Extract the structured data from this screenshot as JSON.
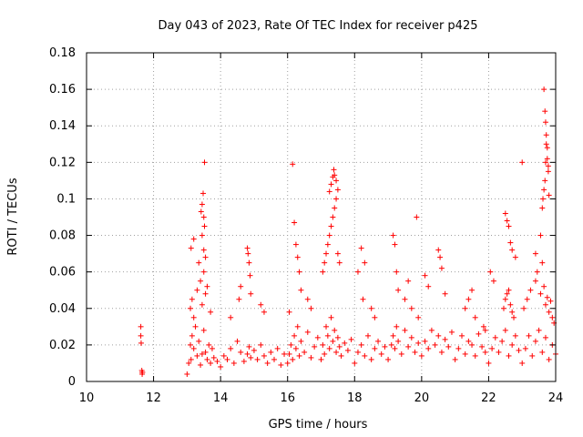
{
  "chart_data": {
    "type": "scatter",
    "title": "Day 043 of 2023, Rate Of TEC Index for receiver p425",
    "xlabel": "GPS time / hours",
    "ylabel": "ROTI / TECUs",
    "xlim": [
      10,
      24
    ],
    "ylim": [
      0,
      0.18
    ],
    "x_ticks": [
      "10",
      "12",
      "14",
      "16",
      "18",
      "20",
      "22",
      "24"
    ],
    "y_ticks": [
      "0",
      "0.02",
      "0.04",
      "0.06",
      "0.08",
      "0.1",
      "0.12",
      "0.14",
      "0.16",
      "0.18"
    ],
    "grid": true,
    "marker": "+",
    "color": "#ff0000",
    "series": [
      {
        "x": [
          11.62,
          11.62,
          11.63,
          11.65,
          11.66,
          11.66,
          11.67,
          13.0,
          13.05,
          13.1,
          13.12,
          13.15,
          13.2,
          13.25,
          13.3,
          13.35,
          13.4,
          13.45,
          13.5,
          13.55,
          13.6,
          13.65,
          13.7,
          13.75,
          13.8,
          13.9,
          13.1,
          13.15,
          13.2,
          13.3,
          13.4,
          13.45,
          13.5,
          13.55,
          13.6,
          13.7,
          13.12,
          13.2,
          13.35,
          13.45,
          13.5,
          13.52,
          13.55,
          13.42,
          13.45,
          13.48,
          13.5,
          13.52,
          14.0,
          14.1,
          14.2,
          14.3,
          14.4,
          14.5,
          14.6,
          14.7,
          14.8,
          14.85,
          14.9,
          15.0,
          15.1,
          15.2,
          15.3,
          15.4,
          15.5,
          15.6,
          15.7,
          15.8,
          15.9,
          14.8,
          14.82,
          14.85,
          14.88,
          14.9,
          14.55,
          14.6,
          15.2,
          15.3,
          14.3,
          16.0,
          16.05,
          16.1,
          16.15,
          16.2,
          16.25,
          16.3,
          16.35,
          16.4,
          16.5,
          16.6,
          16.7,
          16.8,
          16.9,
          16.15,
          16.2,
          16.25,
          16.3,
          16.35,
          16.4,
          16.6,
          16.7,
          16.05,
          17.0,
          17.05,
          17.1,
          17.15,
          17.2,
          17.25,
          17.3,
          17.35,
          17.4,
          17.45,
          17.5,
          17.55,
          17.6,
          17.7,
          17.8,
          17.9,
          17.05,
          17.1,
          17.15,
          17.2,
          17.25,
          17.3,
          17.35,
          17.4,
          17.45,
          17.5,
          17.55,
          17.25,
          17.3,
          17.35,
          17.38,
          17.4,
          17.45,
          17.5,
          18.0,
          18.1,
          18.2,
          18.3,
          18.4,
          18.5,
          18.6,
          18.7,
          18.8,
          18.9,
          18.1,
          18.2,
          18.3,
          18.25,
          18.5,
          18.6,
          19.0,
          19.1,
          19.15,
          19.2,
          19.25,
          19.3,
          19.4,
          19.5,
          19.6,
          19.7,
          19.8,
          19.9,
          19.15,
          19.2,
          19.25,
          19.3,
          19.5,
          19.6,
          19.7,
          19.85,
          19.9,
          20.0,
          20.1,
          20.2,
          20.3,
          20.4,
          20.5,
          20.6,
          20.7,
          20.8,
          20.9,
          20.1,
          20.2,
          20.5,
          20.55,
          20.6,
          20.7,
          21.0,
          21.1,
          21.2,
          21.3,
          21.4,
          21.5,
          21.6,
          21.7,
          21.8,
          21.9,
          21.3,
          21.4,
          21.5,
          21.6,
          21.85,
          21.9,
          22.0,
          22.1,
          22.2,
          22.3,
          22.4,
          22.5,
          22.6,
          22.7,
          22.8,
          22.9,
          22.05,
          22.15,
          22.45,
          22.5,
          22.55,
          22.6,
          22.65,
          22.7,
          22.75,
          22.5,
          22.55,
          22.6,
          22.65,
          22.7,
          22.8,
          23.0,
          23.1,
          23.2,
          23.3,
          23.4,
          23.5,
          23.6,
          23.7,
          23.8,
          23.9,
          24.0,
          23.05,
          23.15,
          23.25,
          23.4,
          23.45,
          23.55,
          23.6,
          23.65,
          23.7,
          23.75,
          23.8,
          23.85,
          23.9,
          23.95,
          23.0,
          23.4,
          23.55,
          23.6,
          23.62,
          23.65,
          23.68,
          23.7,
          23.72,
          23.75,
          23.78,
          23.8,
          23.65,
          23.68,
          23.7,
          23.72,
          23.75,
          23.78
        ],
        "y": [
          0.03,
          0.025,
          0.021,
          0.006,
          0.005,
          0.004,
          0.005,
          0.004,
          0.01,
          0.02,
          0.012,
          0.025,
          0.018,
          0.03,
          0.014,
          0.022,
          0.009,
          0.015,
          0.028,
          0.016,
          0.012,
          0.02,
          0.01,
          0.018,
          0.013,
          0.011,
          0.04,
          0.045,
          0.035,
          0.05,
          0.055,
          0.042,
          0.06,
          0.048,
          0.052,
          0.038,
          0.073,
          0.078,
          0.065,
          0.08,
          0.072,
          0.085,
          0.068,
          0.093,
          0.097,
          0.103,
          0.09,
          0.12,
          0.008,
          0.014,
          0.012,
          0.018,
          0.01,
          0.022,
          0.016,
          0.011,
          0.015,
          0.019,
          0.013,
          0.017,
          0.012,
          0.02,
          0.014,
          0.01,
          0.016,
          0.012,
          0.018,
          0.009,
          0.015,
          0.073,
          0.07,
          0.065,
          0.058,
          0.048,
          0.045,
          0.052,
          0.042,
          0.038,
          0.035,
          0.01,
          0.015,
          0.02,
          0.012,
          0.025,
          0.018,
          0.03,
          0.014,
          0.022,
          0.016,
          0.027,
          0.013,
          0.019,
          0.024,
          0.119,
          0.087,
          0.075,
          0.068,
          0.06,
          0.05,
          0.045,
          0.04,
          0.038,
          0.012,
          0.02,
          0.015,
          0.03,
          0.025,
          0.018,
          0.035,
          0.022,
          0.028,
          0.016,
          0.024,
          0.019,
          0.014,
          0.021,
          0.017,
          0.023,
          0.06,
          0.065,
          0.07,
          0.075,
          0.08,
          0.085,
          0.09,
          0.095,
          0.1,
          0.07,
          0.065,
          0.104,
          0.108,
          0.112,
          0.116,
          0.113,
          0.11,
          0.105,
          0.01,
          0.016,
          0.02,
          0.014,
          0.025,
          0.012,
          0.018,
          0.022,
          0.015,
          0.019,
          0.06,
          0.073,
          0.065,
          0.045,
          0.04,
          0.035,
          0.012,
          0.02,
          0.025,
          0.018,
          0.03,
          0.022,
          0.015,
          0.028,
          0.019,
          0.024,
          0.016,
          0.021,
          0.08,
          0.075,
          0.06,
          0.05,
          0.045,
          0.055,
          0.04,
          0.09,
          0.035,
          0.014,
          0.022,
          0.018,
          0.028,
          0.02,
          0.025,
          0.016,
          0.023,
          0.019,
          0.027,
          0.058,
          0.052,
          0.072,
          0.068,
          0.062,
          0.048,
          0.012,
          0.018,
          0.025,
          0.015,
          0.022,
          0.02,
          0.014,
          0.026,
          0.019,
          0.016,
          0.04,
          0.045,
          0.05,
          0.035,
          0.03,
          0.028,
          0.01,
          0.018,
          0.024,
          0.016,
          0.022,
          0.028,
          0.014,
          0.02,
          0.025,
          0.017,
          0.06,
          0.055,
          0.04,
          0.045,
          0.048,
          0.05,
          0.042,
          0.038,
          0.035,
          0.092,
          0.088,
          0.085,
          0.076,
          0.072,
          0.068,
          0.01,
          0.018,
          0.025,
          0.014,
          0.022,
          0.028,
          0.016,
          0.024,
          0.012,
          0.02,
          0.015,
          0.04,
          0.045,
          0.05,
          0.055,
          0.06,
          0.048,
          0.065,
          0.052,
          0.042,
          0.046,
          0.038,
          0.044,
          0.035,
          0.032,
          0.12,
          0.07,
          0.08,
          0.095,
          0.1,
          0.105,
          0.11,
          0.12,
          0.13,
          0.128,
          0.115,
          0.102,
          0.16,
          0.148,
          0.142,
          0.135,
          0.122,
          0.118
        ]
      }
    ]
  }
}
